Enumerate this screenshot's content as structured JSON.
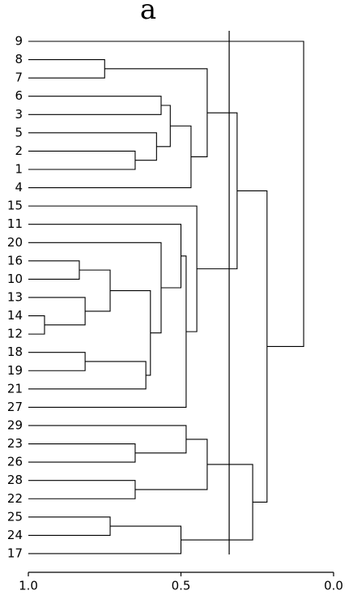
{
  "chart_data": {
    "type": "dendrogram",
    "title": "a",
    "leaves": [
      "9",
      "8",
      "7",
      "6",
      "3",
      "5",
      "2",
      "1",
      "4",
      "15",
      "11",
      "20",
      "16",
      "10",
      "13",
      "14",
      "12",
      "18",
      "19",
      "21",
      "27",
      "29",
      "23",
      "26",
      "28",
      "22",
      "25",
      "24",
      "17"
    ],
    "merges": [
      [
        1,
        2,
        0.75
      ],
      [
        6,
        7,
        0.65
      ],
      [
        5,
        30,
        0.58
      ],
      [
        3,
        4,
        0.565
      ],
      [
        32,
        31,
        0.535
      ],
      [
        33,
        8,
        0.467
      ],
      [
        29,
        34,
        0.414
      ],
      [
        12,
        13,
        0.833
      ],
      [
        15,
        16,
        0.947
      ],
      [
        14,
        37,
        0.814
      ],
      [
        36,
        38,
        0.732
      ],
      [
        17,
        18,
        0.814
      ],
      [
        40,
        19,
        0.615
      ],
      [
        39,
        41,
        0.6
      ],
      [
        11,
        42,
        0.565
      ],
      [
        10,
        43,
        0.5
      ],
      [
        44,
        20,
        0.483
      ],
      [
        9,
        45,
        0.448
      ],
      [
        35,
        46,
        0.316
      ],
      [
        22,
        23,
        0.65
      ],
      [
        21,
        48,
        0.483
      ],
      [
        24,
        25,
        0.65
      ],
      [
        49,
        50,
        0.414
      ],
      [
        26,
        27,
        0.732
      ],
      [
        52,
        28,
        0.5
      ],
      [
        51,
        53,
        0.265
      ],
      [
        47,
        54,
        0.218
      ],
      [
        0,
        55,
        0.098
      ]
    ],
    "cut": 0.342,
    "xlim": [
      1.0,
      0.0
    ],
    "xticks": [
      {
        "value": 1.0,
        "label": "1.0"
      },
      {
        "value": 0.5,
        "label": "0.5"
      },
      {
        "value": 0.0,
        "label": "0.0"
      }
    ]
  }
}
